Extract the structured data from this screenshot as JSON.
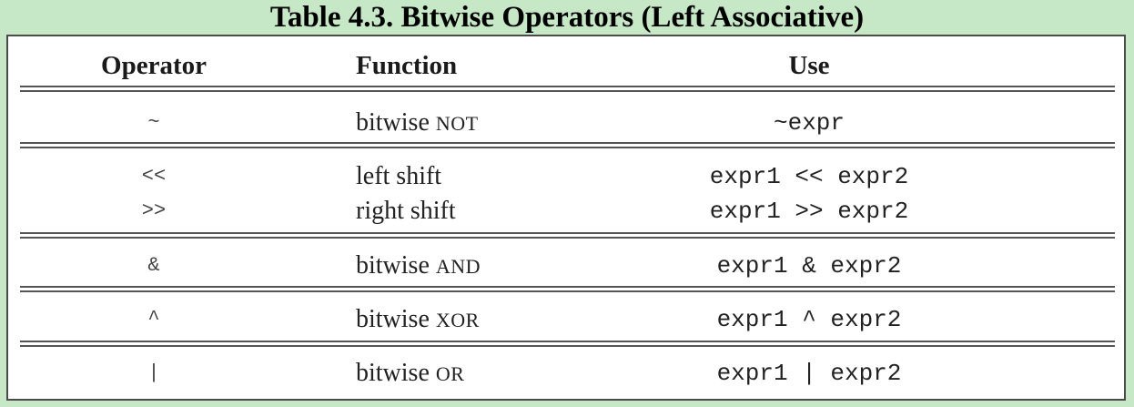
{
  "title": "Table 4.3. Bitwise Operators (Left Associative)",
  "columns": {
    "operator": "Operator",
    "function": "Function",
    "use": "Use"
  },
  "rows": [
    {
      "operator": "~",
      "function_word": "bitwise",
      "function_sc": "NOT",
      "use": "~expr"
    },
    {
      "operator": "<<",
      "function_word": "left shift",
      "function_sc": "",
      "use": "expr1 << expr2"
    },
    {
      "operator": ">>",
      "function_word": "right shift",
      "function_sc": "",
      "use": "expr1 >> expr2"
    },
    {
      "operator": "&",
      "function_word": "bitwise",
      "function_sc": "AND",
      "use": "expr1 & expr2"
    },
    {
      "operator": "^",
      "function_word": "bitwise",
      "function_sc": "XOR",
      "use": "expr1 ^ expr2"
    },
    {
      "operator": "|",
      "function_word": "bitwise",
      "function_sc": "OR",
      "use": "expr1 | expr2"
    }
  ]
}
